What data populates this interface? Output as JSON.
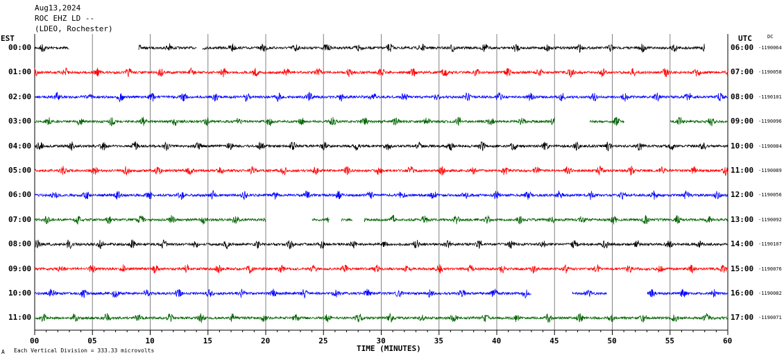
{
  "header": {
    "date": "Aug13,2024",
    "station": "ROC EHZ LD --",
    "network": "(LDEO, Rochester)"
  },
  "left_axis_title": "EST",
  "right_axis_title": "UTC",
  "dc_title": "DC",
  "corner_mark": "A",
  "footer_note": "Each Vertical Division = 333.33 microvolts",
  "colors": {
    "trace_cycle": [
      "#000000",
      "#ff0000",
      "#0000ff",
      "#006400"
    ],
    "grid": "#808080",
    "axis": "#000000"
  },
  "chart_data": {
    "type": "line",
    "title": "ROC EHZ LD --",
    "xlabel": "TIME (MINUTES)",
    "ylabel": "",
    "xlim": [
      0,
      60
    ],
    "x_ticks": [
      "00",
      "05",
      "10",
      "15",
      "20",
      "25",
      "30",
      "35",
      "40",
      "45",
      "50",
      "55",
      "60"
    ],
    "rows": [
      {
        "est": "00:00",
        "utc": "06:00",
        "dc": "-1190064",
        "gaps": [
          [
            3,
            9
          ],
          [
            14,
            14.5
          ],
          [
            58,
            60
          ]
        ]
      },
      {
        "est": "01:00",
        "utc": "07:00",
        "dc": "-1190058",
        "gaps": []
      },
      {
        "est": "02:00",
        "utc": "08:00",
        "dc": "-1190101",
        "gaps": []
      },
      {
        "est": "03:00",
        "utc": "09:00",
        "dc": "-1190096",
        "gaps": [
          [
            45,
            48
          ],
          [
            51,
            55
          ]
        ]
      },
      {
        "est": "04:00",
        "utc": "10:00",
        "dc": "-1190084",
        "gaps": []
      },
      {
        "est": "05:00",
        "utc": "11:00",
        "dc": "-1190089",
        "gaps": []
      },
      {
        "est": "06:00",
        "utc": "12:00",
        "dc": "-1190056",
        "gaps": []
      },
      {
        "est": "07:00",
        "utc": "13:00",
        "dc": "-1190092",
        "gaps": [
          [
            20,
            24
          ],
          [
            25.5,
            26.5
          ],
          [
            27.5,
            28.5
          ]
        ]
      },
      {
        "est": "08:00",
        "utc": "14:00",
        "dc": "-1190107",
        "gaps": []
      },
      {
        "est": "09:00",
        "utc": "15:00",
        "dc": "-1190076",
        "gaps": []
      },
      {
        "est": "10:00",
        "utc": "16:00",
        "dc": "-1190082",
        "gaps": [
          [
            43,
            46.5
          ],
          [
            49.5,
            53
          ]
        ]
      },
      {
        "est": "11:00",
        "utc": "17:00",
        "dc": "-1190071",
        "gaps": []
      }
    ]
  }
}
